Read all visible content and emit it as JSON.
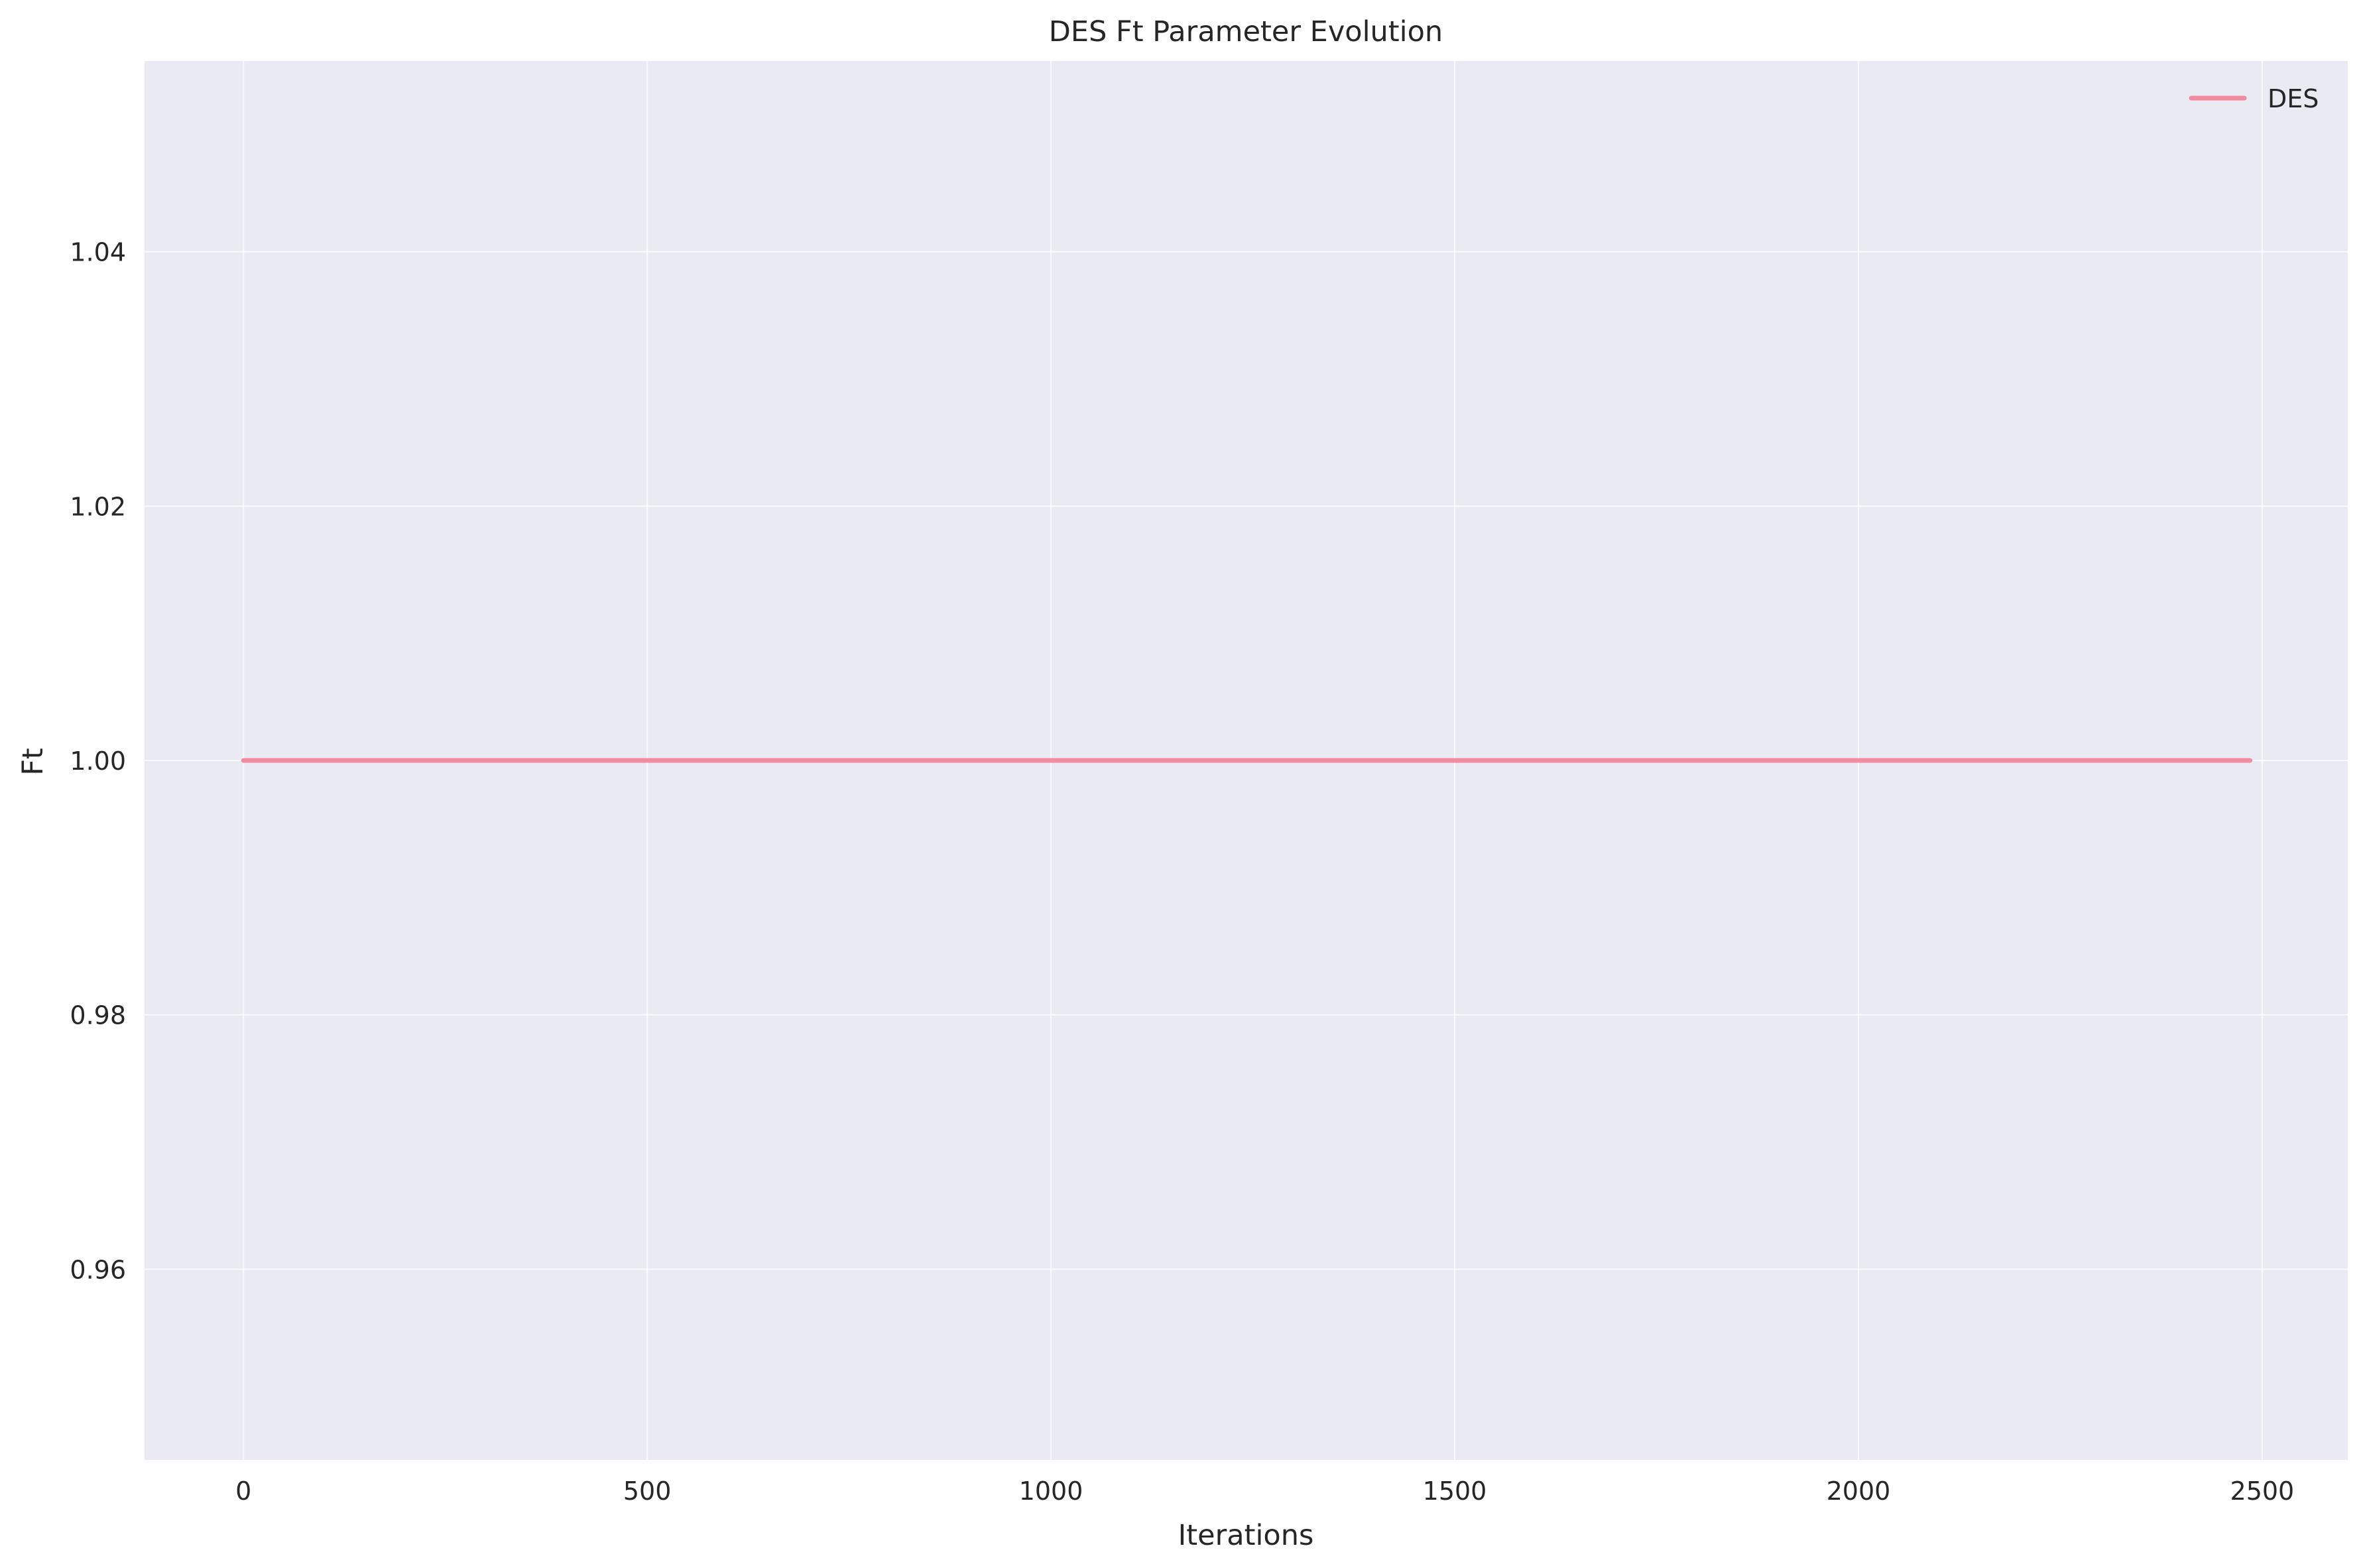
{
  "chart_data": {
    "type": "line",
    "title": "DES Ft Parameter Evolution",
    "xlabel": "Iterations",
    "ylabel": "Ft",
    "xlim": [
      -122.5,
      2606
    ],
    "ylim": [
      0.945,
      1.055
    ],
    "xticks": [
      0,
      500,
      1000,
      1500,
      2000,
      2500
    ],
    "xtick_labels": [
      "0",
      "500",
      "1000",
      "1500",
      "2000",
      "2500"
    ],
    "yticks": [
      0.96,
      0.98,
      1.0,
      1.02,
      1.04
    ],
    "ytick_labels": [
      "0.96",
      "0.98",
      "1.00",
      "1.02",
      "1.04"
    ],
    "grid": true,
    "legend_position": "upper right",
    "series": [
      {
        "name": "DES",
        "color": "#f28b9f",
        "x": [
          0,
          2485
        ],
        "y": [
          1.0,
          1.0
        ]
      }
    ]
  },
  "colors": {
    "plot_background": "#eaeaf2",
    "grid": "#ffffff",
    "text": "#262626"
  }
}
